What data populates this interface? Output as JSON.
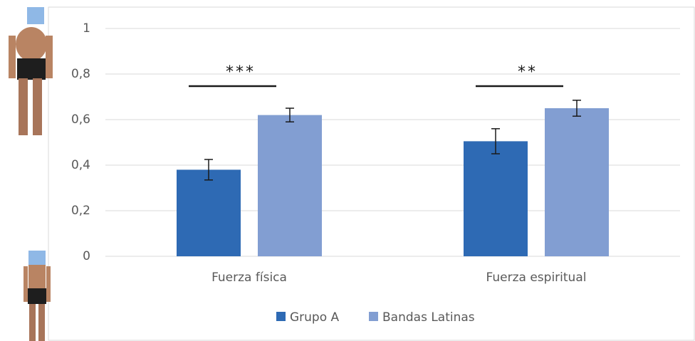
{
  "chart_data": {
    "type": "bar",
    "categories": [
      "Fuerza física",
      "Fuerza espiritual"
    ],
    "series": [
      {
        "name": "Grupo A",
        "color": "#2e6ab4",
        "values": [
          0.38,
          0.505
        ],
        "errors": [
          0.045,
          0.055
        ]
      },
      {
        "name": "Bandas Latinas",
        "color": "#829ed2",
        "values": [
          0.62,
          0.65
        ],
        "errors": [
          0.03,
          0.035
        ]
      }
    ],
    "annotations": [
      "***",
      "**"
    ],
    "ylim": [
      0,
      1
    ],
    "yticks": [
      0,
      {
        "value": 0.2,
        "label": "0,2"
      },
      {
        "value": 0.4,
        "label": "0,4"
      },
      {
        "value": 0.6,
        "label": "0,6"
      },
      {
        "value": 0.8,
        "label": "0,8"
      },
      1
    ],
    "grid": true,
    "legend": "bottom"
  }
}
